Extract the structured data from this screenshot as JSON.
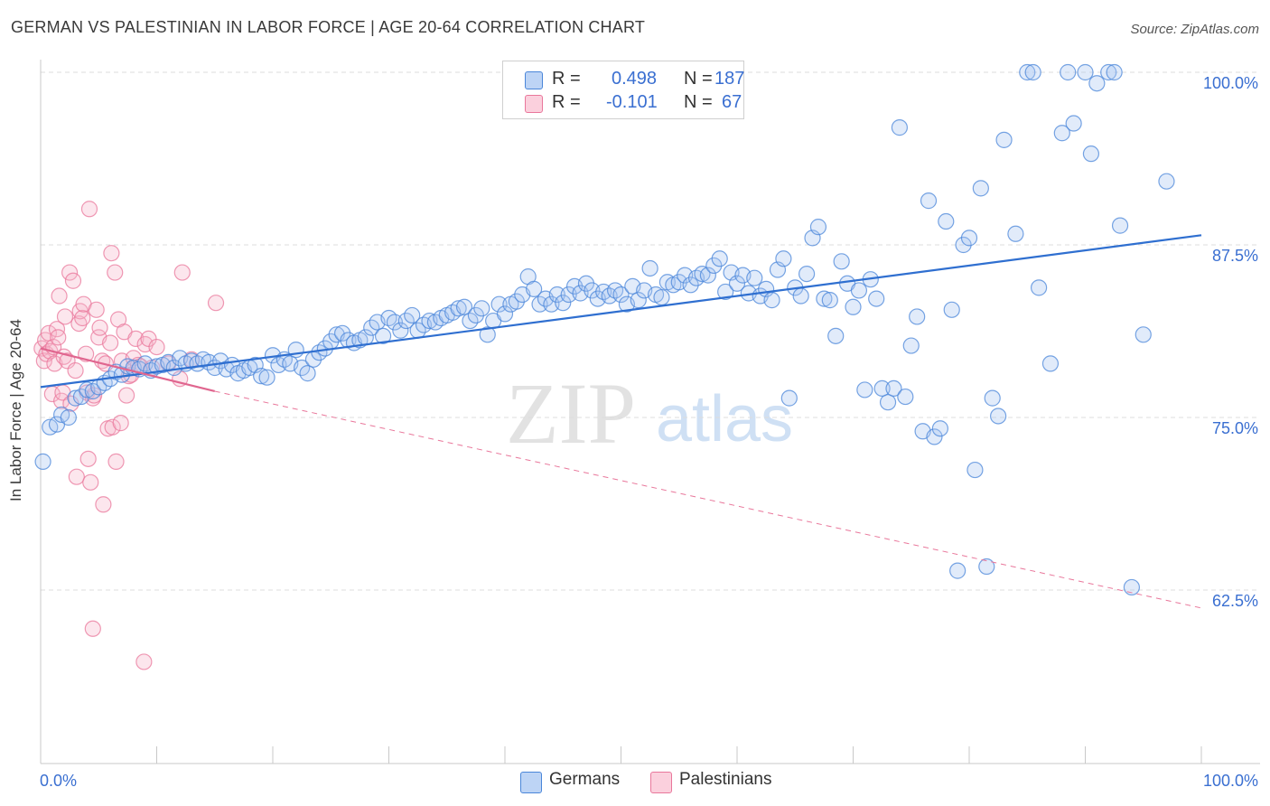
{
  "title": "GERMAN VS PALESTINIAN IN LABOR FORCE | AGE 20-64 CORRELATION CHART",
  "source": "Source: ZipAtlas.com",
  "watermark": {
    "zip": "ZIP",
    "atlas": "atlas"
  },
  "legend": {
    "rows": [
      {
        "r_label": "R =",
        "r_value": "0.498",
        "n_label": "N =",
        "n_value": "187",
        "color": "#a9c6f2"
      },
      {
        "r_label": "R =",
        "r_value": "-0.101",
        "n_label": "N =",
        "n_value": "67",
        "color": "#f6b8cc"
      }
    ]
  },
  "bottom_legend": [
    {
      "label": "Germans",
      "color": "#a9c6f2"
    },
    {
      "label": "Palestinians",
      "color": "#f6b8cc"
    }
  ],
  "chart_data": {
    "type": "scatter",
    "title": "GERMAN VS PALESTINIAN IN LABOR FORCE | AGE 20-64 CORRELATION CHART",
    "xlabel": "",
    "ylabel": "In Labor Force | Age 20-64",
    "xlim": [
      0,
      100
    ],
    "ylim": [
      52,
      102
    ],
    "x_tick_labels": [
      "0.0%",
      "100.0%"
    ],
    "y_ticks": [
      62.5,
      75.0,
      87.5,
      100.0
    ],
    "y_tick_labels": [
      "62.5%",
      "75.0%",
      "87.5%",
      "100.0%"
    ],
    "grid": true,
    "legend_position": "top-center",
    "colors": {
      "germans": "#4a86d9",
      "palestinians": "#e9779b",
      "axis_text": "#3a6fd1"
    },
    "series": [
      {
        "name": "Germans",
        "trend": {
          "x": [
            0,
            100
          ],
          "y": [
            77.2,
            88.2
          ],
          "style": "solid"
        },
        "points": [
          [
            0.2,
            71.8
          ],
          [
            0.8,
            74.3
          ],
          [
            1.4,
            74.5
          ],
          [
            1.8,
            75.2
          ],
          [
            2.4,
            75.0
          ],
          [
            3.0,
            76.4
          ],
          [
            3.5,
            76.5
          ],
          [
            4.0,
            77.0
          ],
          [
            4.5,
            76.9
          ],
          [
            5.0,
            77.2
          ],
          [
            5.5,
            77.5
          ],
          [
            6.0,
            77.8
          ],
          [
            6.5,
            78.3
          ],
          [
            7.0,
            78.1
          ],
          [
            7.5,
            78.7
          ],
          [
            8.0,
            78.6
          ],
          [
            8.5,
            78.5
          ],
          [
            9.0,
            78.9
          ],
          [
            9.5,
            78.4
          ],
          [
            10.0,
            78.7
          ],
          [
            10.5,
            78.8
          ],
          [
            11.0,
            79.0
          ],
          [
            11.5,
            78.6
          ],
          [
            12.0,
            79.3
          ],
          [
            12.5,
            78.9
          ],
          [
            13.0,
            79.1
          ],
          [
            13.5,
            78.9
          ],
          [
            14.0,
            79.2
          ],
          [
            14.5,
            79.0
          ],
          [
            15.0,
            78.6
          ],
          [
            15.5,
            79.1
          ],
          [
            16.0,
            78.5
          ],
          [
            16.5,
            78.8
          ],
          [
            17.0,
            78.2
          ],
          [
            17.5,
            78.4
          ],
          [
            18.0,
            78.6
          ],
          [
            18.5,
            78.8
          ],
          [
            19.0,
            78.0
          ],
          [
            19.5,
            77.9
          ],
          [
            20.0,
            79.5
          ],
          [
            20.5,
            78.8
          ],
          [
            21.0,
            79.2
          ],
          [
            21.5,
            78.9
          ],
          [
            22.0,
            79.9
          ],
          [
            22.5,
            78.6
          ],
          [
            23.0,
            78.2
          ],
          [
            23.5,
            79.2
          ],
          [
            24.0,
            79.7
          ],
          [
            24.5,
            80.0
          ],
          [
            25.0,
            80.5
          ],
          [
            25.5,
            81.0
          ],
          [
            26.0,
            81.1
          ],
          [
            26.5,
            80.6
          ],
          [
            27.0,
            80.4
          ],
          [
            27.5,
            80.6
          ],
          [
            28.0,
            80.8
          ],
          [
            28.5,
            81.5
          ],
          [
            29.0,
            81.9
          ],
          [
            29.5,
            80.9
          ],
          [
            30.0,
            82.2
          ],
          [
            30.5,
            81.9
          ],
          [
            31.0,
            81.3
          ],
          [
            31.5,
            82.0
          ],
          [
            32.0,
            82.4
          ],
          [
            32.5,
            81.3
          ],
          [
            33.0,
            81.7
          ],
          [
            33.5,
            82.0
          ],
          [
            34.0,
            81.9
          ],
          [
            34.5,
            82.2
          ],
          [
            35.0,
            82.4
          ],
          [
            35.5,
            82.6
          ],
          [
            36.0,
            82.9
          ],
          [
            36.5,
            83.0
          ],
          [
            37.0,
            82.0
          ],
          [
            37.5,
            82.4
          ],
          [
            38.0,
            82.9
          ],
          [
            38.5,
            81.0
          ],
          [
            39.0,
            82.0
          ],
          [
            39.5,
            83.2
          ],
          [
            40.0,
            82.5
          ],
          [
            40.5,
            83.2
          ],
          [
            41.0,
            83.4
          ],
          [
            41.5,
            83.9
          ],
          [
            42.0,
            85.2
          ],
          [
            42.5,
            84.3
          ],
          [
            43.0,
            83.2
          ],
          [
            43.5,
            83.6
          ],
          [
            44.0,
            83.2
          ],
          [
            44.5,
            83.9
          ],
          [
            45.0,
            83.3
          ],
          [
            45.5,
            83.9
          ],
          [
            46.0,
            84.5
          ],
          [
            46.5,
            84.0
          ],
          [
            47.0,
            84.7
          ],
          [
            47.5,
            84.2
          ],
          [
            48.0,
            83.6
          ],
          [
            48.5,
            84.1
          ],
          [
            49.0,
            83.8
          ],
          [
            49.5,
            84.2
          ],
          [
            50.0,
            83.9
          ],
          [
            50.5,
            83.2
          ],
          [
            51.0,
            84.5
          ],
          [
            51.5,
            83.5
          ],
          [
            52.0,
            84.2
          ],
          [
            52.5,
            85.8
          ],
          [
            53.0,
            83.9
          ],
          [
            53.5,
            83.7
          ],
          [
            54.0,
            84.8
          ],
          [
            54.5,
            84.6
          ],
          [
            55.0,
            84.8
          ],
          [
            55.5,
            85.3
          ],
          [
            56.0,
            84.6
          ],
          [
            56.5,
            85.1
          ],
          [
            57.0,
            85.4
          ],
          [
            57.5,
            85.3
          ],
          [
            58.0,
            86.0
          ],
          [
            58.5,
            86.5
          ],
          [
            59.0,
            84.1
          ],
          [
            59.5,
            85.5
          ],
          [
            60.0,
            84.7
          ],
          [
            60.5,
            85.3
          ],
          [
            61.0,
            84.0
          ],
          [
            61.5,
            85.1
          ],
          [
            62.0,
            83.8
          ],
          [
            62.5,
            84.3
          ],
          [
            63.0,
            83.5
          ],
          [
            63.5,
            85.7
          ],
          [
            64.0,
            86.5
          ],
          [
            64.5,
            76.4
          ],
          [
            65.0,
            84.4
          ],
          [
            65.5,
            83.8
          ],
          [
            66.0,
            85.4
          ],
          [
            66.5,
            88.0
          ],
          [
            67.0,
            88.8
          ],
          [
            67.5,
            83.6
          ],
          [
            68.0,
            83.5
          ],
          [
            68.5,
            80.9
          ],
          [
            69.0,
            86.3
          ],
          [
            69.5,
            84.7
          ],
          [
            70.0,
            83.0
          ],
          [
            70.5,
            84.2
          ],
          [
            71.0,
            77.0
          ],
          [
            71.5,
            85.0
          ],
          [
            72.0,
            83.6
          ],
          [
            72.5,
            77.1
          ],
          [
            73.0,
            76.1
          ],
          [
            73.5,
            77.1
          ],
          [
            74.0,
            96.0
          ],
          [
            74.5,
            76.5
          ],
          [
            75.0,
            80.2
          ],
          [
            75.5,
            82.3
          ],
          [
            76.0,
            74.0
          ],
          [
            76.5,
            90.7
          ],
          [
            77.0,
            73.6
          ],
          [
            77.5,
            74.2
          ],
          [
            78.0,
            89.2
          ],
          [
            78.5,
            82.8
          ],
          [
            79.0,
            63.9
          ],
          [
            79.5,
            87.5
          ],
          [
            80.0,
            88.0
          ],
          [
            80.5,
            71.2
          ],
          [
            81.0,
            91.6
          ],
          [
            81.5,
            64.2
          ],
          [
            82.0,
            76.4
          ],
          [
            82.5,
            75.1
          ],
          [
            83.0,
            95.1
          ],
          [
            84.0,
            88.3
          ],
          [
            85.0,
            100.0
          ],
          [
            85.5,
            100.0
          ],
          [
            86.0,
            84.4
          ],
          [
            87.0,
            78.9
          ],
          [
            88.0,
            95.6
          ],
          [
            88.5,
            100.0
          ],
          [
            89.0,
            96.3
          ],
          [
            90.0,
            100.0
          ],
          [
            90.5,
            94.1
          ],
          [
            91.0,
            99.2
          ],
          [
            92.0,
            100.0
          ],
          [
            92.5,
            100.0
          ],
          [
            93.0,
            88.9
          ],
          [
            94.0,
            62.7
          ],
          [
            95.0,
            81.0
          ],
          [
            97.0,
            92.1
          ]
        ]
      },
      {
        "name": "Palestinians",
        "trend": {
          "x": [
            0,
            15
          ],
          "y": [
            80.0,
            76.9
          ],
          "style": "solid",
          "extended_x": [
            15,
            100
          ],
          "extended_y": [
            76.9,
            61.2
          ],
          "extended_style": "dashed"
        },
        "points": [
          [
            0.1,
            80.0
          ],
          [
            0.3,
            79.1
          ],
          [
            0.4,
            80.6
          ],
          [
            0.5,
            79.6
          ],
          [
            0.7,
            81.1
          ],
          [
            0.8,
            79.8
          ],
          [
            1.0,
            76.7
          ],
          [
            1.1,
            80.1
          ],
          [
            1.2,
            78.9
          ],
          [
            1.4,
            81.4
          ],
          [
            1.5,
            80.8
          ],
          [
            1.6,
            83.8
          ],
          [
            1.8,
            76.2
          ],
          [
            1.9,
            76.8
          ],
          [
            2.0,
            79.4
          ],
          [
            2.1,
            82.3
          ],
          [
            2.3,
            79.1
          ],
          [
            2.5,
            85.5
          ],
          [
            2.6,
            76.0
          ],
          [
            2.8,
            84.9
          ],
          [
            3.0,
            78.4
          ],
          [
            3.1,
            70.7
          ],
          [
            3.3,
            81.8
          ],
          [
            3.4,
            82.7
          ],
          [
            3.6,
            82.2
          ],
          [
            3.7,
            83.2
          ],
          [
            3.9,
            79.6
          ],
          [
            4.0,
            76.8
          ],
          [
            4.1,
            72.0
          ],
          [
            4.2,
            90.1
          ],
          [
            4.3,
            70.3
          ],
          [
            4.5,
            76.4
          ],
          [
            4.6,
            76.6
          ],
          [
            4.8,
            82.8
          ],
          [
            5.0,
            80.8
          ],
          [
            5.1,
            81.5
          ],
          [
            5.3,
            79.1
          ],
          [
            5.4,
            68.7
          ],
          [
            5.6,
            78.9
          ],
          [
            5.8,
            74.2
          ],
          [
            6.0,
            80.4
          ],
          [
            6.1,
            86.9
          ],
          [
            6.2,
            74.3
          ],
          [
            6.4,
            85.5
          ],
          [
            6.5,
            71.8
          ],
          [
            6.7,
            82.1
          ],
          [
            6.9,
            74.6
          ],
          [
            7.0,
            79.1
          ],
          [
            7.2,
            81.2
          ],
          [
            7.4,
            76.6
          ],
          [
            7.6,
            78.0
          ],
          [
            7.8,
            78.1
          ],
          [
            8.0,
            79.3
          ],
          [
            8.2,
            80.7
          ],
          [
            8.4,
            78.8
          ],
          [
            8.6,
            78.7
          ],
          [
            9.0,
            80.3
          ],
          [
            9.3,
            80.7
          ],
          [
            9.6,
            78.6
          ],
          [
            10.0,
            80.1
          ],
          [
            11.0,
            78.9
          ],
          [
            12.0,
            77.8
          ],
          [
            13.0,
            79.2
          ],
          [
            4.5,
            59.7
          ],
          [
            8.9,
            57.3
          ],
          [
            12.2,
            85.5
          ],
          [
            15.1,
            83.3
          ]
        ]
      }
    ]
  }
}
